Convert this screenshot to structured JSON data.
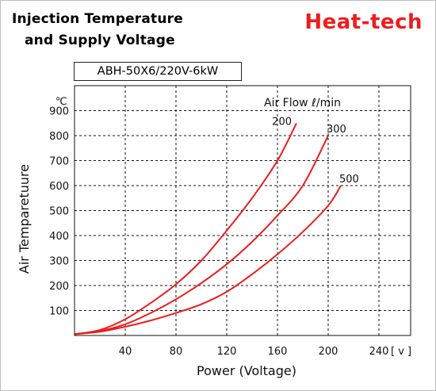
{
  "header": {
    "title_line1": "Injection Temperature",
    "title_line2": "and Supply Voltage",
    "brand": "Heat-tech",
    "model": "ABH-50X6/220V-6kW"
  },
  "colors": {
    "brand": "#ee1c1c",
    "series": "#ee1c1c",
    "grid": "#111111"
  },
  "chart_data": {
    "type": "line",
    "xlabel": "Power (Voltage)",
    "ylabel": "Air Temparetuure",
    "x_unit": "[ v ]",
    "y_unit": "℃",
    "xlim": [
      0,
      265
    ],
    "ylim": [
      0,
      1000
    ],
    "xticks": [
      40,
      80,
      120,
      160,
      200,
      240
    ],
    "yticks": [
      100,
      200,
      300,
      400,
      500,
      600,
      700,
      800,
      900
    ],
    "grid": true,
    "legend_title": "Air Flow ℓ/min",
    "series": [
      {
        "name": "200",
        "values": [
          [
            0,
            5
          ],
          [
            20,
            22
          ],
          [
            40,
            65
          ],
          [
            60,
            130
          ],
          [
            80,
            205
          ],
          [
            100,
            300
          ],
          [
            120,
            420
          ],
          [
            140,
            550
          ],
          [
            160,
            700
          ],
          [
            175,
            850
          ]
        ]
      },
      {
        "name": "300",
        "values": [
          [
            0,
            5
          ],
          [
            20,
            18
          ],
          [
            40,
            45
          ],
          [
            60,
            90
          ],
          [
            80,
            145
          ],
          [
            100,
            210
          ],
          [
            120,
            285
          ],
          [
            140,
            375
          ],
          [
            160,
            480
          ],
          [
            180,
            600
          ],
          [
            200,
            800
          ]
        ]
      },
      {
        "name": "500",
        "values": [
          [
            0,
            5
          ],
          [
            20,
            15
          ],
          [
            40,
            35
          ],
          [
            60,
            60
          ],
          [
            80,
            90
          ],
          [
            100,
            125
          ],
          [
            120,
            175
          ],
          [
            140,
            245
          ],
          [
            160,
            325
          ],
          [
            180,
            415
          ],
          [
            200,
            520
          ],
          [
            210,
            600
          ]
        ]
      }
    ]
  }
}
